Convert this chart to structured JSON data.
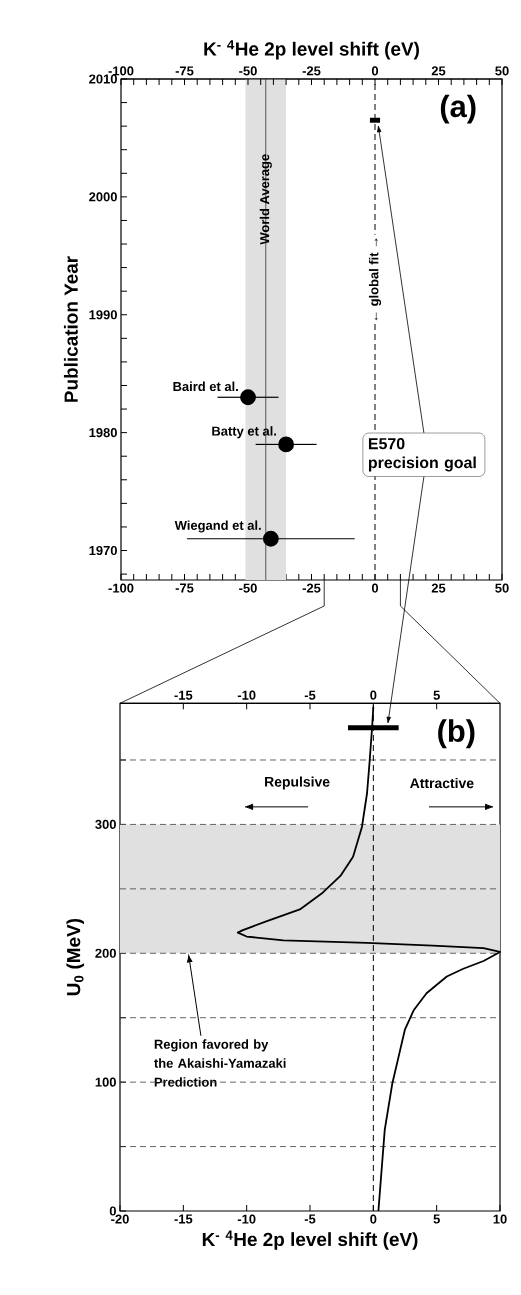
{
  "chart_data": [
    {
      "type": "scatter",
      "x2label": "K$^{-}$ $^{4}$He 2p level shift (eV)",
      "ylabel": "Publication Year",
      "xlim": [
        -100,
        50
      ],
      "ylim": [
        1967.5,
        2010
      ],
      "xticks": [
        -100,
        {
          "value": -95,
          "label": null
        },
        {
          "value": -90,
          "label": null
        },
        {
          "value": -85,
          "label": null
        },
        {
          "value": -80,
          "label": null
        },
        -75,
        {
          "value": -70,
          "label": null
        },
        {
          "value": -65,
          "label": null
        },
        {
          "value": -60,
          "label": null
        },
        {
          "value": -55,
          "label": null
        },
        -50,
        {
          "value": -45,
          "label": null
        },
        {
          "value": -40,
          "label": null
        },
        {
          "value": -35,
          "label": null
        },
        {
          "value": -30,
          "label": null
        },
        -25,
        {
          "value": -20,
          "label": null
        },
        {
          "value": -15,
          "label": null
        },
        {
          "value": -10,
          "label": null
        },
        {
          "value": -5,
          "label": null
        },
        0,
        {
          "value": 5,
          "label": null
        },
        {
          "value": 10,
          "label": null
        },
        {
          "value": 15,
          "label": null
        },
        {
          "value": 20,
          "label": null
        },
        25,
        {
          "value": 30,
          "label": null
        },
        {
          "value": 35,
          "label": null
        },
        {
          "value": 40,
          "label": null
        },
        {
          "value": 45,
          "label": null
        },
        50
      ],
      "x2lim": [
        -100,
        50
      ],
      "x2ticks": [
        -100,
        {
          "value": -95,
          "label": null
        },
        {
          "value": -90,
          "label": null
        },
        {
          "value": -85,
          "label": null
        },
        {
          "value": -80,
          "label": null
        },
        -75,
        {
          "value": -70,
          "label": null
        },
        {
          "value": -65,
          "label": null
        },
        {
          "value": -60,
          "label": null
        },
        {
          "value": -55,
          "label": null
        },
        -50,
        {
          "value": -45,
          "label": null
        },
        {
          "value": -40,
          "label": null
        },
        {
          "value": -35,
          "label": null
        },
        {
          "value": -30,
          "label": null
        },
        -25,
        {
          "value": -20,
          "label": null
        },
        {
          "value": -15,
          "label": null
        },
        {
          "value": -10,
          "label": null
        },
        {
          "value": -5,
          "label": null
        },
        0,
        {
          "value": 5,
          "label": null
        },
        {
          "value": 10,
          "label": null
        },
        {
          "value": 15,
          "label": null
        },
        {
          "value": 20,
          "label": null
        },
        25,
        {
          "value": 30,
          "label": null
        },
        {
          "value": 35,
          "label": null
        },
        {
          "value": 40,
          "label": null
        },
        {
          "value": 45,
          "label": null
        },
        50
      ],
      "yticks": [
        {
          "value": 1968,
          "label": null
        },
        1970,
        {
          "value": 1972,
          "label": null
        },
        {
          "value": 1974,
          "label": null
        },
        {
          "value": 1976,
          "label": null
        },
        {
          "value": 1978,
          "label": null
        },
        1980,
        {
          "value": 1982,
          "label": null
        },
        {
          "value": 1984,
          "label": null
        },
        {
          "value": 1986,
          "label": null
        },
        {
          "value": 1988,
          "label": null
        },
        1990,
        {
          "value": 1992,
          "label": null
        },
        {
          "value": 1994,
          "label": null
        },
        {
          "value": 1996,
          "label": null
        },
        {
          "value": 1998,
          "label": null
        },
        2000,
        {
          "value": 2002,
          "label": null
        },
        {
          "value": 2004,
          "label": null
        },
        {
          "value": 2006,
          "label": null
        },
        {
          "value": 2008,
          "label": null
        },
        2010
      ],
      "marker": "circle",
      "series": [
        {
          "name": "Baird et al.",
          "color": "#000000",
          "x": [
            -50
          ],
          "values": [
            1983
          ],
          "xerrors": [
            [
              -62,
              -38
            ]
          ]
        },
        {
          "name": "Batty et al.",
          "color": "#000000",
          "x": [
            -35
          ],
          "values": [
            1979
          ],
          "xerrors": [
            [
              -47,
              -23
            ]
          ]
        },
        {
          "name": "Wiegand et al.",
          "color": "#000000",
          "x": [
            -41
          ],
          "values": [
            1971
          ],
          "xerrors": [
            [
              -74,
              -8
            ]
          ]
        },
        {
          "type": "line",
          "color": "#000000",
          "marker": "none",
          "x": [
            -2,
            2
          ],
          "values": [
            2006.5,
            2006.5
          ]
        }
      ],
      "bands": [
        {
          "axis": "x",
          "from": -51,
          "to": -35,
          "color": "#e0e0e0"
        }
      ],
      "ref_lines": [
        {
          "axis": "x",
          "value": -43,
          "label": "World Average",
          "color": "#555555",
          "line_style": "solid"
        },
        {
          "axis": "x",
          "value": 0,
          "label": "← global fit →",
          "color": "#000000",
          "line_style": "dashed"
        }
      ],
      "annotations": [
        "(a)",
        "E570 precision goal"
      ]
    },
    {
      "type": "line",
      "xlabel": "K$^{-}$ $^{4}$He 2p level shift (eV)",
      "ylabel": "U$_{0}$ (MeV)",
      "xlim": [
        -20,
        10
      ],
      "ylim": [
        0,
        394
      ],
      "xticks": [
        -20,
        -15,
        -10,
        -5,
        0,
        5,
        10
      ],
      "x2lim": [
        -20,
        10
      ],
      "x2ticks": [
        -15,
        -10,
        -5,
        0,
        5
      ],
      "yticks": [
        0,
        {
          "value": 50,
          "label": null
        },
        100,
        {
          "value": 150,
          "label": null
        },
        200,
        {
          "value": 250,
          "label": null
        },
        300,
        {
          "value": 350,
          "label": null
        }
      ],
      "grid": "y",
      "marker": "none",
      "line_style": "solid",
      "series": [
        {
          "color": "#000000",
          "x": [
            0.0,
            -0.1,
            -0.3,
            -0.5,
            -0.9,
            -1.6,
            -2.6,
            -4.0,
            -5.8,
            -8.4,
            -10.3,
            -10.7,
            -10.0,
            -7.1,
            -0.5,
            4.7,
            8.7,
            10.0,
            8.7,
            7.1,
            5.8,
            4.2,
            3.2,
            2.5,
            2.0,
            1.5,
            0.9,
            0.4
          ],
          "values": [
            391,
            375,
            348,
            324,
            298,
            275,
            260,
            247,
            234,
            225,
            218,
            216,
            213,
            210,
            208,
            206,
            204,
            201,
            194,
            188,
            182,
            169,
            156,
            141,
            120,
            99,
            63,
            0
          ]
        },
        {
          "color": "#000000",
          "x": [
            -2,
            2
          ],
          "values": [
            375,
            375
          ]
        }
      ],
      "bands": [
        {
          "axis": "y",
          "from": 200,
          "to": 300,
          "color": "#e0e0e0",
          "label": "Region favored by the Akaishi-Yamazaki Prediction"
        }
      ],
      "ref_lines": [
        {
          "axis": "x",
          "value": 0,
          "color": "#000000",
          "line_style": "dashed"
        }
      ],
      "annotations": [
        "(b)",
        "Repulsive",
        "Attractive"
      ]
    }
  ]
}
